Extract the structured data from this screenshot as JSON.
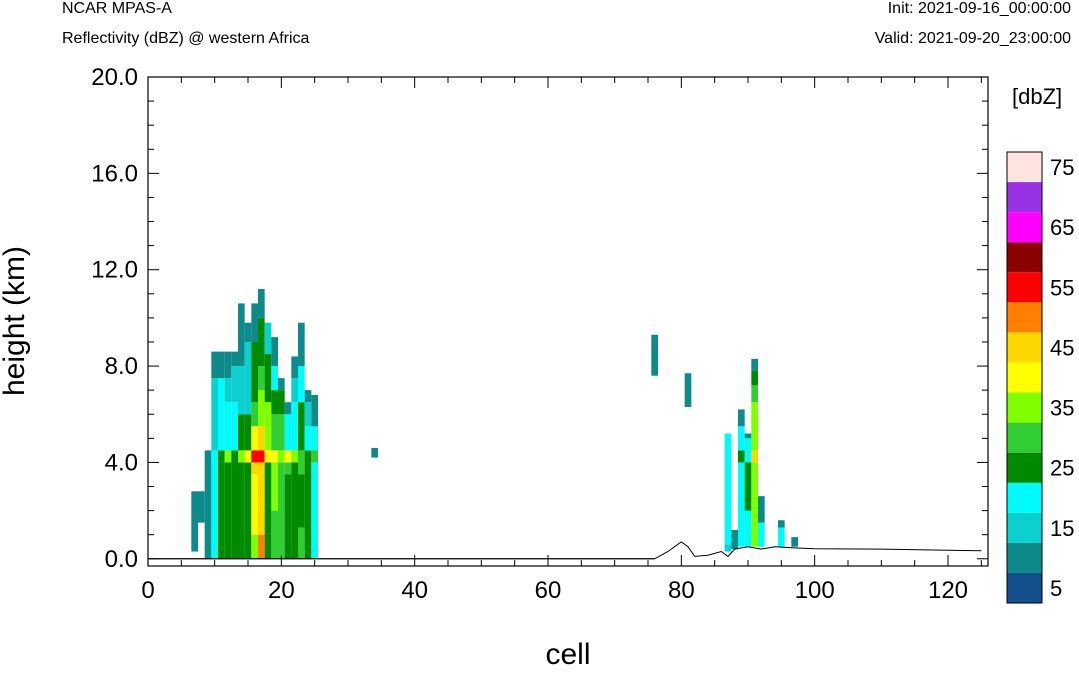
{
  "header": {
    "top_left": "NCAR MPAS-A",
    "top_left_sub": "Reflectivity (dBZ) @ western Africa",
    "top_right": "Init: 2021-09-16_00:00:00",
    "top_right_sub": "Valid: 2021-09-20_23:00:00"
  },
  "chart_data": {
    "type": "heatmap",
    "title": "Reflectivity (dBZ) @ western Africa",
    "xlabel": "cell",
    "ylabel": "height (km)",
    "xlim": [
      0,
      126
    ],
    "ylim": [
      -0.3,
      20.0
    ],
    "x_ticks": [
      "0",
      "20",
      "40",
      "60",
      "80",
      "100",
      "120"
    ],
    "y_ticks": [
      "0.0",
      "4.0",
      "8.0",
      "12.0",
      "16.0",
      "20.0"
    ],
    "colorbar": {
      "unit": "[dbZ]",
      "bounds": [
        0,
        5,
        10,
        15,
        20,
        25,
        30,
        35,
        40,
        45,
        50,
        55,
        60,
        65,
        70,
        75,
        80
      ],
      "tick_labels": [
        "5",
        "15",
        "25",
        "35",
        "45",
        "55",
        "65",
        "75"
      ],
      "colors": [
        "#124f8c",
        "#0f8a8a",
        "#0cd0d0",
        "#00fbfb",
        "#008a00",
        "#32cd32",
        "#7fff00",
        "#ffff00",
        "#ffd700",
        "#ff8000",
        "#ff0000",
        "#8b0000",
        "#ff00ff",
        "#9932e6",
        "#ffe4e1"
      ]
    },
    "terrain_km": [
      [
        0,
        0
      ],
      [
        76,
        0
      ],
      [
        78,
        0.3
      ],
      [
        80,
        0.7
      ],
      [
        81,
        0.5
      ],
      [
        82,
        0.1
      ],
      [
        84,
        0.15
      ],
      [
        86,
        0.3
      ],
      [
        87,
        0.1
      ],
      [
        88,
        0.4
      ],
      [
        90,
        0.5
      ],
      [
        92,
        0.4
      ],
      [
        94,
        0.5
      ],
      [
        97,
        0.45
      ],
      [
        100,
        0.42
      ],
      [
        110,
        0.4
      ],
      [
        120,
        0.35
      ],
      [
        125,
        0.33
      ]
    ],
    "cells": [
      {
        "x": 7,
        "ranges": [
          [
            0.3,
            2.8,
            5
          ]
        ]
      },
      {
        "x": 8,
        "ranges": [
          [
            1.5,
            2.8,
            5
          ]
        ]
      },
      {
        "x": 9,
        "ranges": [
          [
            0,
            4.5,
            5
          ]
        ]
      },
      {
        "x": 10,
        "ranges": [
          [
            0,
            4.5,
            15
          ],
          [
            4.5,
            7.5,
            10
          ],
          [
            7.5,
            8.6,
            5
          ]
        ]
      },
      {
        "x": 11,
        "ranges": [
          [
            0,
            4.0,
            20
          ],
          [
            4.0,
            4.5,
            20
          ],
          [
            4.5,
            7.5,
            15
          ],
          [
            7.5,
            8.6,
            5
          ]
        ]
      },
      {
        "x": 12,
        "ranges": [
          [
            0,
            4.0,
            20
          ],
          [
            4.0,
            4.5,
            30
          ],
          [
            4.5,
            6.5,
            15
          ],
          [
            6.5,
            7.5,
            10
          ],
          [
            7.5,
            8.6,
            5
          ]
        ]
      },
      {
        "x": 13,
        "ranges": [
          [
            0,
            4.5,
            20
          ],
          [
            4.5,
            6.5,
            15
          ],
          [
            6.5,
            8.0,
            10
          ],
          [
            8.0,
            8.6,
            5
          ]
        ]
      },
      {
        "x": 14,
        "ranges": [
          [
            0,
            4.0,
            20
          ],
          [
            4.0,
            4.5,
            30
          ],
          [
            4.5,
            6.0,
            20
          ],
          [
            6.0,
            8.0,
            10
          ],
          [
            8.0,
            10.6,
            5
          ]
        ]
      },
      {
        "x": 15,
        "ranges": [
          [
            0,
            4.0,
            20
          ],
          [
            4.0,
            4.5,
            35
          ],
          [
            4.5,
            6.0,
            20
          ],
          [
            6.0,
            9.0,
            10
          ],
          [
            9.0,
            9.8,
            5
          ]
        ]
      },
      {
        "x": 16,
        "ranges": [
          [
            0,
            1.0,
            30
          ],
          [
            1.0,
            3.5,
            35
          ],
          [
            3.5,
            4.0,
            40
          ],
          [
            4.0,
            4.5,
            50
          ],
          [
            4.5,
            5.5,
            35
          ],
          [
            5.5,
            6.5,
            25
          ],
          [
            6.5,
            9.0,
            20
          ],
          [
            9.0,
            10.6,
            5
          ]
        ]
      },
      {
        "x": 17,
        "ranges": [
          [
            0,
            1.0,
            45
          ],
          [
            1.0,
            4.0,
            40
          ],
          [
            4.0,
            4.5,
            50
          ],
          [
            4.5,
            5.5,
            40
          ],
          [
            5.5,
            7.0,
            30
          ],
          [
            7.0,
            8.0,
            25
          ],
          [
            8.0,
            10.0,
            20
          ],
          [
            10.0,
            11.2,
            5
          ]
        ]
      },
      {
        "x": 18,
        "ranges": [
          [
            0,
            4.0,
            20
          ],
          [
            4.0,
            4.5,
            35
          ],
          [
            4.5,
            6.5,
            30
          ],
          [
            6.5,
            8.5,
            20
          ],
          [
            8.5,
            9.8,
            10
          ]
        ]
      },
      {
        "x": 19,
        "ranges": [
          [
            0,
            2.0,
            25
          ],
          [
            2.0,
            4.0,
            30
          ],
          [
            4.0,
            4.5,
            35
          ],
          [
            4.5,
            6.0,
            25
          ],
          [
            6.0,
            7.0,
            20
          ],
          [
            7.0,
            8.0,
            15
          ],
          [
            8.0,
            9.2,
            5
          ]
        ]
      },
      {
        "x": 20,
        "ranges": [
          [
            0,
            4.0,
            25
          ],
          [
            4.0,
            4.5,
            30
          ],
          [
            4.5,
            6.0,
            25
          ],
          [
            6.0,
            7.0,
            20
          ],
          [
            7.0,
            7.5,
            5
          ]
        ]
      },
      {
        "x": 21,
        "ranges": [
          [
            0,
            3.5,
            20
          ],
          [
            3.5,
            4.0,
            25
          ],
          [
            4.0,
            4.5,
            35
          ],
          [
            4.5,
            6.0,
            15
          ],
          [
            6.0,
            6.5,
            5
          ]
        ]
      },
      {
        "x": 22,
        "ranges": [
          [
            0,
            4.0,
            20
          ],
          [
            4.0,
            4.5,
            30
          ],
          [
            4.5,
            6.5,
            15
          ],
          [
            6.5,
            7.5,
            10
          ],
          [
            7.5,
            8.4,
            5
          ]
        ]
      },
      {
        "x": 23,
        "ranges": [
          [
            0,
            1.3,
            25
          ],
          [
            1.3,
            3.5,
            20
          ],
          [
            3.5,
            4.5,
            25
          ],
          [
            4.5,
            6.5,
            20
          ],
          [
            6.5,
            8.0,
            15
          ],
          [
            8.0,
            9.8,
            5
          ]
        ]
      },
      {
        "x": 24,
        "ranges": [
          [
            0,
            4.5,
            20
          ],
          [
            4.5,
            5.5,
            15
          ],
          [
            5.5,
            6.5,
            10
          ],
          [
            6.5,
            7.0,
            5
          ]
        ]
      },
      {
        "x": 25,
        "ranges": [
          [
            0,
            4.0,
            15
          ],
          [
            4.0,
            4.5,
            25
          ],
          [
            4.5,
            5.5,
            15
          ],
          [
            5.5,
            6.8,
            5
          ]
        ]
      },
      {
        "x": 34,
        "ranges": [
          [
            4.2,
            4.6,
            5
          ]
        ]
      },
      {
        "x": 76,
        "ranges": [
          [
            7.6,
            9.3,
            5
          ]
        ]
      },
      {
        "x": 81,
        "ranges": [
          [
            6.3,
            7.7,
            5
          ]
        ]
      },
      {
        "x": 87,
        "ranges": [
          [
            0.3,
            0.6,
            10
          ],
          [
            0.6,
            5.2,
            15
          ]
        ]
      },
      {
        "x": 88,
        "ranges": [
          [
            0.4,
            1.2,
            5
          ]
        ]
      },
      {
        "x": 89,
        "ranges": [
          [
            0.5,
            4.0,
            15
          ],
          [
            4.0,
            4.5,
            20
          ],
          [
            4.5,
            5.5,
            15
          ],
          [
            5.5,
            6.2,
            5
          ]
        ]
      },
      {
        "x": 90,
        "ranges": [
          [
            0.5,
            2.0,
            15
          ],
          [
            2.0,
            4.0,
            20
          ],
          [
            4.0,
            5.0,
            15
          ],
          [
            5.0,
            5.2,
            5
          ]
        ]
      },
      {
        "x": 91,
        "ranges": [
          [
            0.5,
            2.0,
            30
          ],
          [
            2.0,
            4.0,
            30
          ],
          [
            4.0,
            4.5,
            40
          ],
          [
            4.5,
            6.5,
            30
          ],
          [
            6.5,
            7.2,
            25
          ],
          [
            7.2,
            7.8,
            20
          ],
          [
            7.8,
            8.3,
            5
          ]
        ]
      },
      {
        "x": 92,
        "ranges": [
          [
            0.5,
            1.5,
            15
          ],
          [
            1.5,
            2.6,
            5
          ]
        ]
      },
      {
        "x": 95,
        "ranges": [
          [
            0.5,
            1.3,
            15
          ],
          [
            1.3,
            1.6,
            5
          ]
        ]
      },
      {
        "x": 97,
        "ranges": [
          [
            0.5,
            0.9,
            5
          ]
        ]
      }
    ]
  }
}
